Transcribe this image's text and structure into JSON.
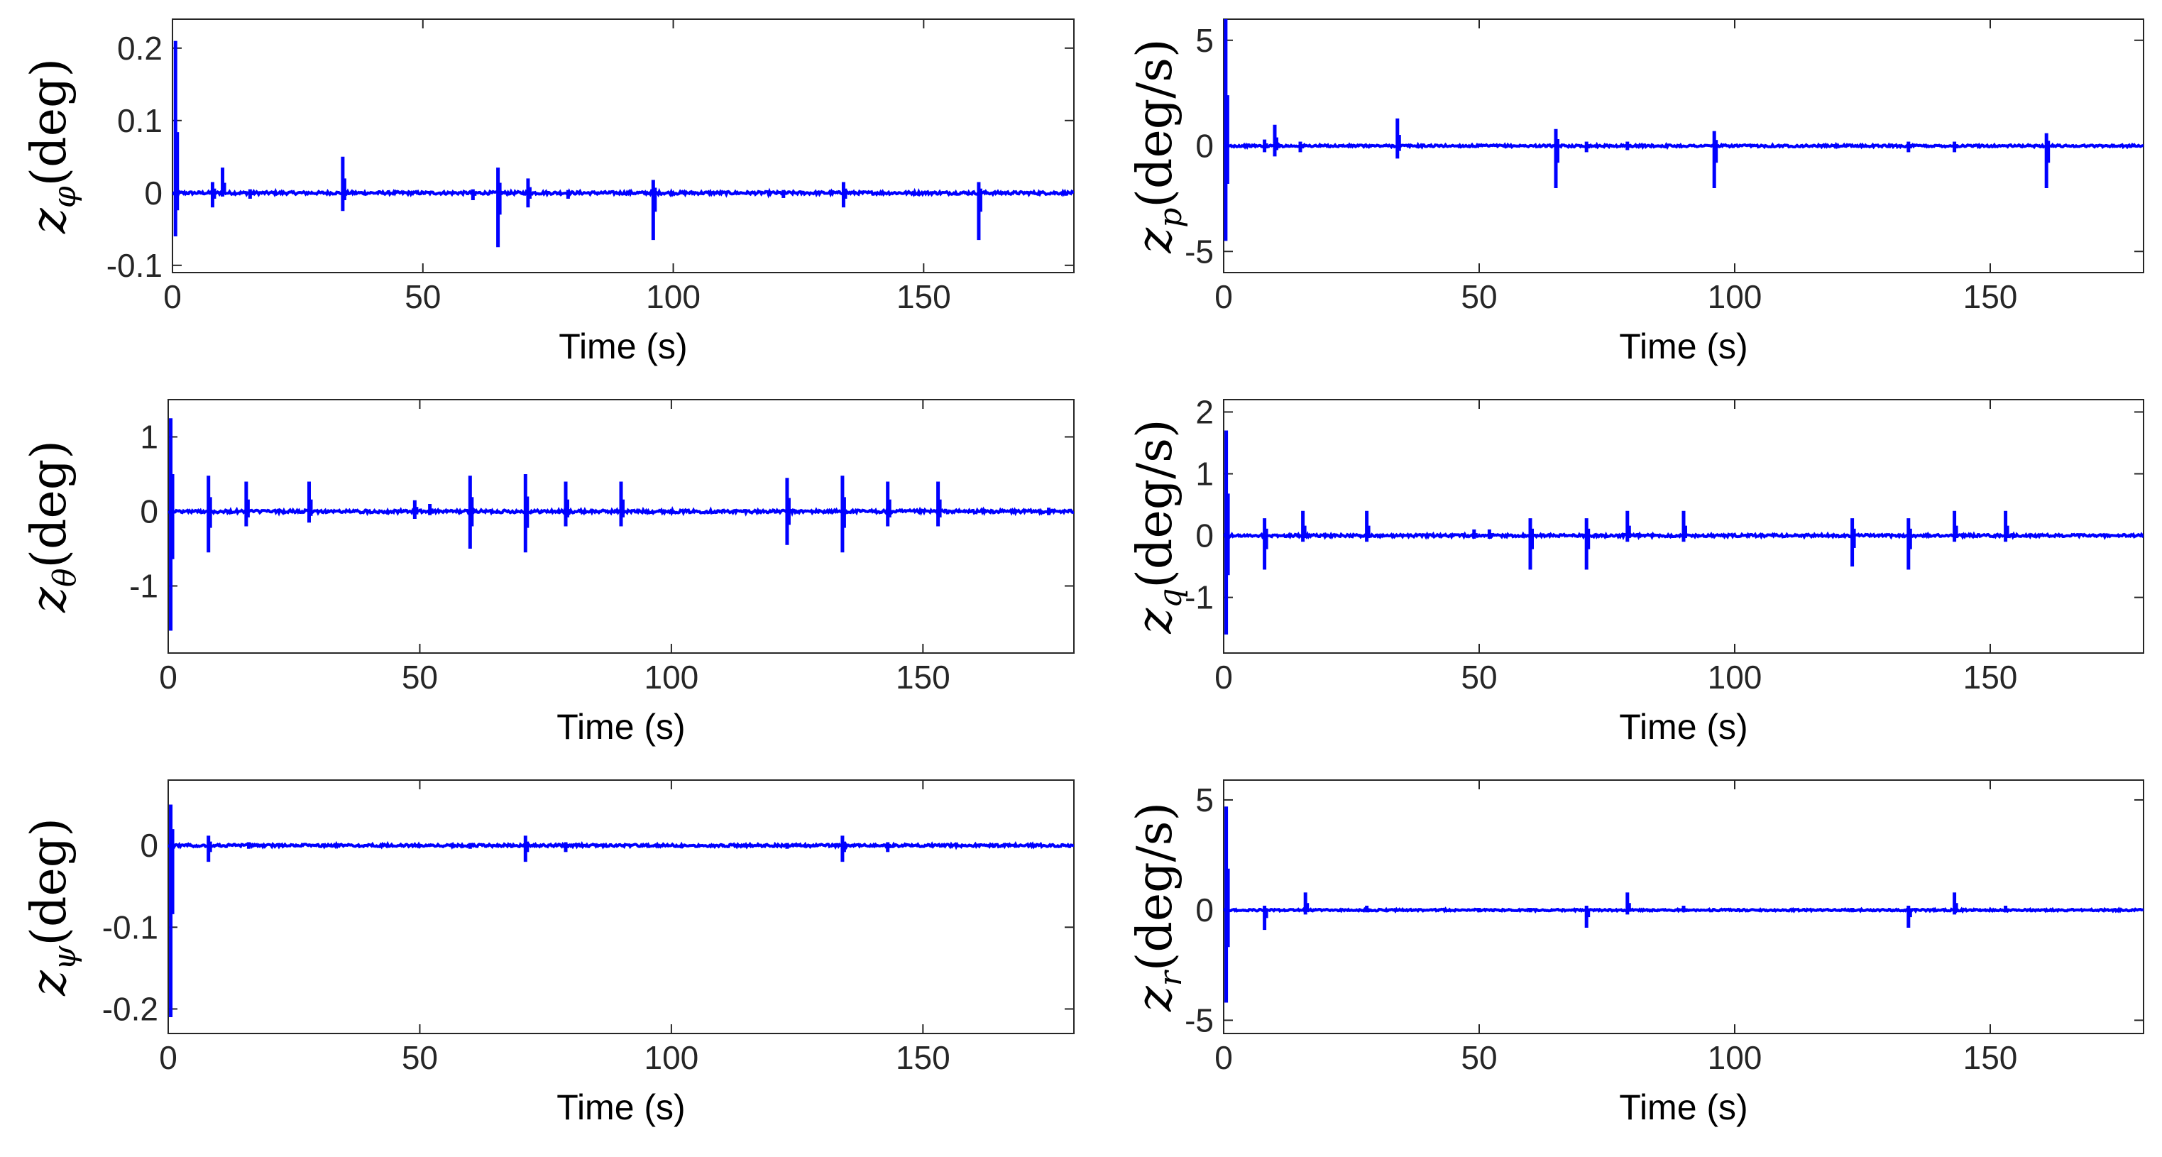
{
  "chart_data": [
    {
      "id": "z_phi",
      "type": "line",
      "ylabel_var": "z",
      "ylabel_sub": "φ",
      "ylabel_unit": "(deg)",
      "xlabel": "Time (s)",
      "xlim": [
        0,
        180
      ],
      "ylim": [
        -0.11,
        0.24
      ],
      "xticks": [
        0,
        50,
        100,
        150
      ],
      "xtick_labels": [
        "0",
        "50",
        "100",
        "150"
      ],
      "yticks": [
        -0.1,
        0,
        0.1,
        0.2
      ],
      "ytick_labels": [
        "-0.1",
        "0",
        "0.1",
        "0.2"
      ],
      "color": "#0000ff",
      "noise": 0.002,
      "spikes": [
        [
          0.6,
          -0.06,
          0.21
        ],
        [
          8,
          -0.02,
          0.015
        ],
        [
          10,
          -0.005,
          0.035
        ],
        [
          15.5,
          -0.008,
          0.005
        ],
        [
          34,
          -0.025,
          0.05
        ],
        [
          60,
          -0.01,
          0.005
        ],
        [
          65,
          -0.075,
          0.035
        ],
        [
          71,
          -0.02,
          0.02
        ],
        [
          79,
          -0.008,
          0.004
        ],
        [
          96,
          -0.065,
          0.018
        ],
        [
          122,
          -0.007,
          0.004
        ],
        [
          134,
          -0.02,
          0.015
        ],
        [
          161,
          -0.065,
          0.015
        ]
      ]
    },
    {
      "id": "z_p",
      "type": "line",
      "ylabel_var": "z",
      "ylabel_sub": "p",
      "ylabel_unit": "(deg/s)",
      "xlabel": "Time (s)",
      "xlim": [
        0,
        180
      ],
      "ylim": [
        -6,
        6
      ],
      "xticks": [
        0,
        50,
        100,
        150
      ],
      "xtick_labels": [
        "0",
        "50",
        "100",
        "150"
      ],
      "yticks": [
        -5,
        0,
        5
      ],
      "ytick_labels": [
        "-5",
        "0",
        "5"
      ],
      "color": "#0000ff",
      "noise": 0.05,
      "spikes": [
        [
          0.4,
          -4.5,
          6
        ],
        [
          8,
          -0.3,
          0.3
        ],
        [
          10,
          -0.5,
          1
        ],
        [
          15,
          -0.3,
          0.2
        ],
        [
          34,
          -0.6,
          1.3
        ],
        [
          65,
          -2,
          0.8
        ],
        [
          71,
          -0.3,
          0.2
        ],
        [
          79,
          -0.2,
          0.2
        ],
        [
          96,
          -2,
          0.7
        ],
        [
          134,
          -0.3,
          0.2
        ],
        [
          143,
          -0.3,
          0.2
        ],
        [
          161,
          -2,
          0.6
        ]
      ]
    },
    {
      "id": "z_theta",
      "type": "line",
      "ylabel_var": "z",
      "ylabel_sub": "θ",
      "ylabel_unit": "(deg)",
      "xlabel": "Time (s)",
      "xlim": [
        0,
        180
      ],
      "ylim": [
        -1.9,
        1.5
      ],
      "xticks": [
        0,
        50,
        100,
        150
      ],
      "xtick_labels": [
        "0",
        "50",
        "100",
        "150"
      ],
      "yticks": [
        -1,
        0,
        1
      ],
      "ytick_labels": [
        "-1",
        "0",
        "1"
      ],
      "color": "#0000ff",
      "noise": 0.02,
      "spikes": [
        [
          0.5,
          -1.6,
          1.25
        ],
        [
          8,
          -0.55,
          0.48
        ],
        [
          15.5,
          -0.2,
          0.4
        ],
        [
          28,
          -0.15,
          0.4
        ],
        [
          49,
          -0.1,
          0.15
        ],
        [
          52,
          -0.05,
          0.1
        ],
        [
          60,
          -0.5,
          0.48
        ],
        [
          71,
          -0.55,
          0.5
        ],
        [
          79,
          -0.2,
          0.4
        ],
        [
          90,
          -0.2,
          0.4
        ],
        [
          123,
          -0.45,
          0.45
        ],
        [
          134,
          -0.55,
          0.48
        ],
        [
          143,
          -0.2,
          0.4
        ],
        [
          153,
          -0.2,
          0.4
        ],
        [
          175,
          -0.05,
          0.05
        ]
      ]
    },
    {
      "id": "z_q",
      "type": "line",
      "ylabel_var": "z",
      "ylabel_sub": "q",
      "ylabel_unit": "(deg/s)",
      "xlabel": "Time (s)",
      "xlim": [
        0,
        180
      ],
      "ylim": [
        -1.9,
        2.2
      ],
      "xticks": [
        0,
        50,
        100,
        150
      ],
      "xtick_labels": [
        "0",
        "50",
        "100",
        "150"
      ],
      "yticks": [
        -1,
        0,
        1,
        2
      ],
      "ytick_labels": [
        "-1",
        "0",
        "1",
        "2"
      ],
      "color": "#0000ff",
      "noise": 0.02,
      "spikes": [
        [
          0.5,
          -1.6,
          1.7
        ],
        [
          8,
          -0.55,
          0.28
        ],
        [
          15.5,
          -0.1,
          0.4
        ],
        [
          28,
          -0.1,
          0.4
        ],
        [
          49,
          -0.05,
          0.1
        ],
        [
          52,
          -0.05,
          0.1
        ],
        [
          60,
          -0.55,
          0.28
        ],
        [
          71,
          -0.55,
          0.28
        ],
        [
          79,
          -0.1,
          0.4
        ],
        [
          90,
          -0.1,
          0.4
        ],
        [
          123,
          -0.5,
          0.28
        ],
        [
          134,
          -0.55,
          0.28
        ],
        [
          143,
          -0.1,
          0.4
        ],
        [
          153,
          -0.1,
          0.4
        ]
      ]
    },
    {
      "id": "z_psi",
      "type": "line",
      "ylabel_var": "z",
      "ylabel_sub": "ψ",
      "ylabel_unit": "(deg)",
      "xlabel": "Time (s)",
      "xlim": [
        0,
        180
      ],
      "ylim": [
        -0.23,
        0.08
      ],
      "xticks": [
        0,
        50,
        100,
        150
      ],
      "xtick_labels": [
        "0",
        "50",
        "100",
        "150"
      ],
      "yticks": [
        -0.2,
        -0.1,
        0
      ],
      "ytick_labels": [
        "-0.2",
        "-0.1",
        "0"
      ],
      "color": "#0000ff",
      "noise": 0.0015,
      "spikes": [
        [
          0.5,
          -0.21,
          0.05
        ],
        [
          8,
          -0.02,
          0.012
        ],
        [
          16,
          -0.004,
          0.004
        ],
        [
          60,
          -0.004,
          0.003
        ],
        [
          71,
          -0.02,
          0.012
        ],
        [
          79,
          -0.008,
          0.004
        ],
        [
          123,
          -0.004,
          0.003
        ],
        [
          134,
          -0.02,
          0.012
        ],
        [
          143,
          -0.008,
          0.004
        ]
      ]
    },
    {
      "id": "z_r",
      "type": "line",
      "ylabel_var": "z",
      "ylabel_sub": "r",
      "ylabel_unit": "(deg/s)",
      "xlabel": "Time (s)",
      "xlim": [
        0,
        180
      ],
      "ylim": [
        -5.6,
        5.9
      ],
      "xticks": [
        0,
        50,
        100,
        150
      ],
      "xtick_labels": [
        "0",
        "50",
        "100",
        "150"
      ],
      "yticks": [
        -5,
        0,
        5
      ],
      "ytick_labels": [
        "-5",
        "0",
        "5"
      ],
      "color": "#0000ff",
      "noise": 0.04,
      "spikes": [
        [
          0.5,
          -4.2,
          4.7
        ],
        [
          8,
          -0.9,
          0.2
        ],
        [
          16,
          -0.2,
          0.8
        ],
        [
          28,
          -0.1,
          0.2
        ],
        [
          50,
          -0.1,
          0.1
        ],
        [
          60,
          -0.1,
          0.1
        ],
        [
          71,
          -0.8,
          0.2
        ],
        [
          79,
          -0.2,
          0.8
        ],
        [
          90,
          -0.1,
          0.2
        ],
        [
          123,
          -0.1,
          0.1
        ],
        [
          134,
          -0.8,
          0.2
        ],
        [
          143,
          -0.2,
          0.8
        ],
        [
          153,
          -0.1,
          0.2
        ]
      ]
    }
  ]
}
